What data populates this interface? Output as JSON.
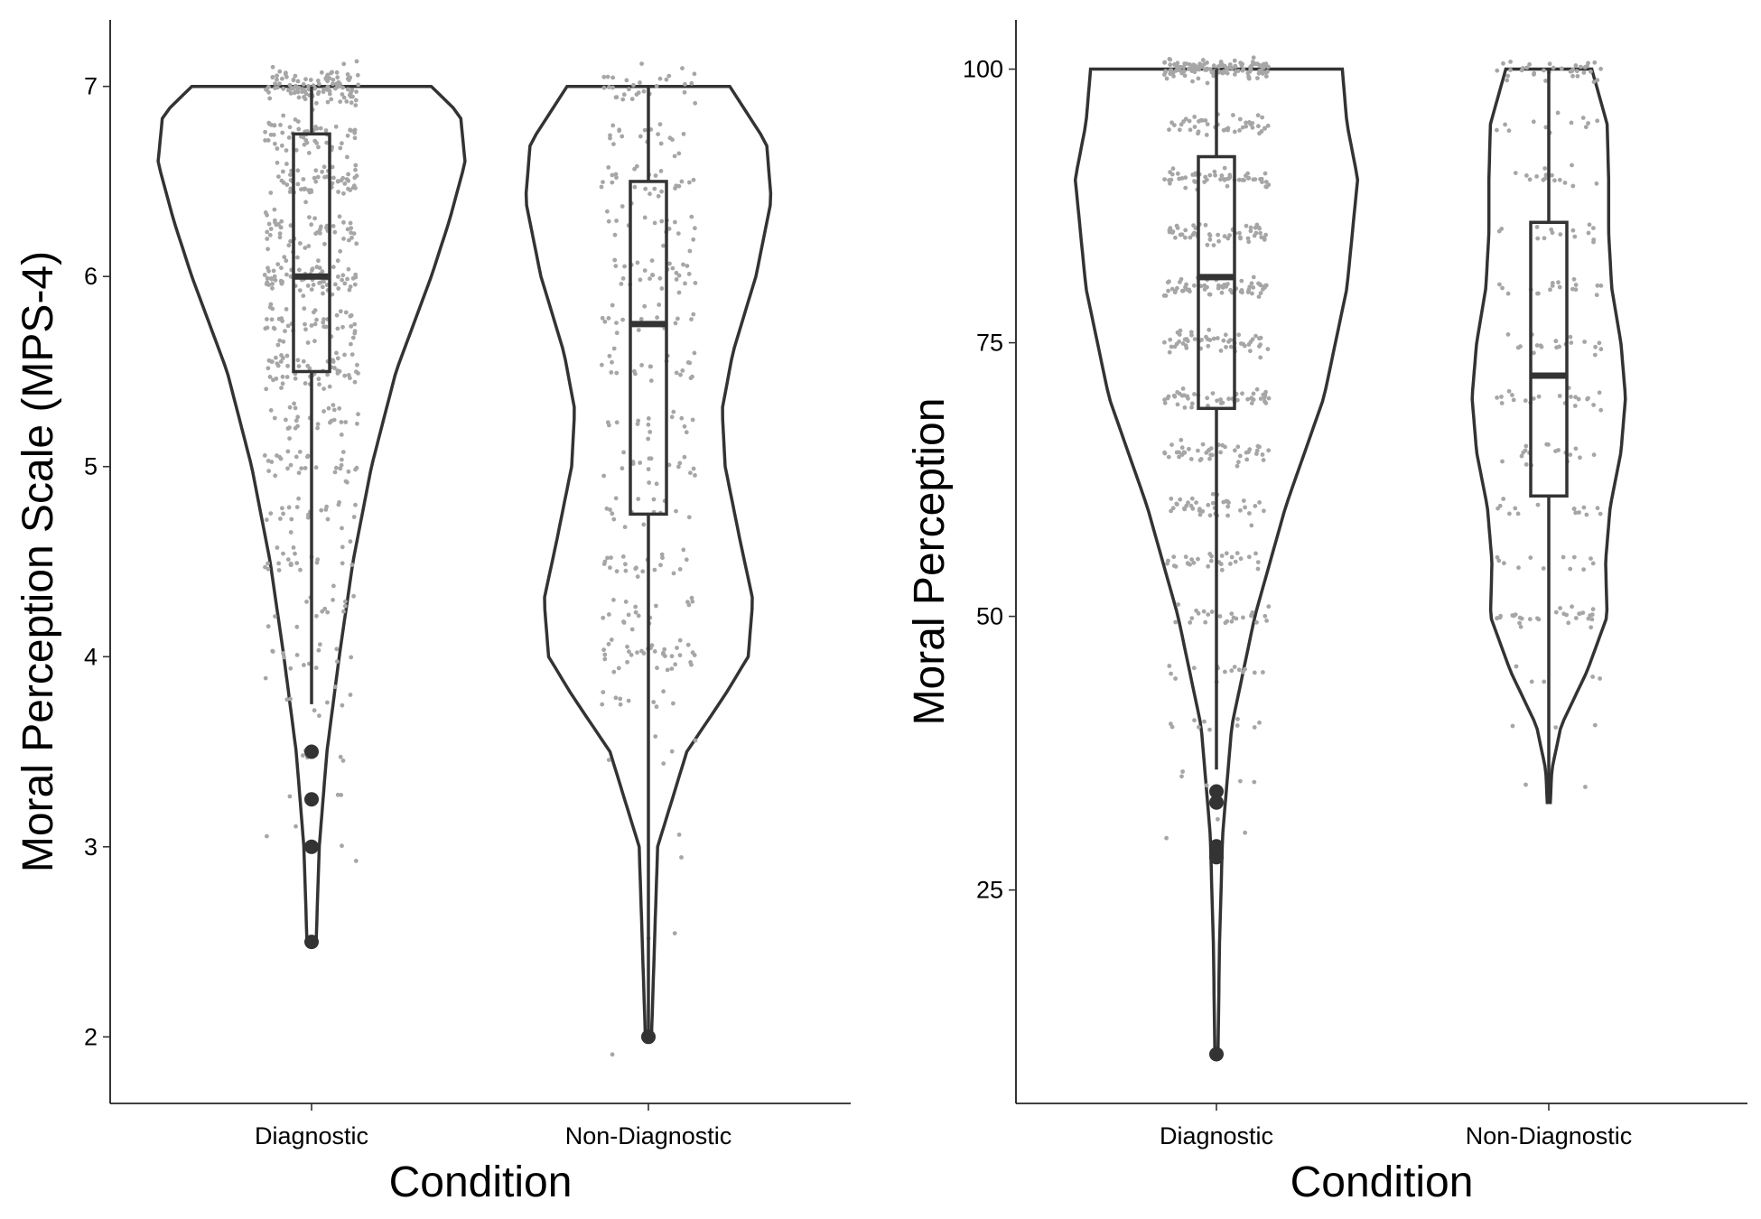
{
  "chart_data": [
    {
      "type": "violin",
      "title": "",
      "xlabel": "Condition",
      "ylabel": "Moral Perception Scale (MPS-4)",
      "ylim": [
        1.65,
        7.35
      ],
      "yticks": [
        2,
        3,
        4,
        5,
        6,
        7
      ],
      "categories": [
        "Diagnostic",
        "Non-Diagnostic"
      ],
      "grid": false,
      "legend": "none",
      "colors": {
        "outline": "#333333",
        "points": "#a6a6a6"
      },
      "series": [
        {
          "category": "Diagnostic",
          "box": {
            "q1": 5.5,
            "median": 6.0,
            "q3": 6.75,
            "whisker_low": 3.75,
            "whisker_high": 7.0
          },
          "outliers": [
            3.5,
            3.25,
            3.0,
            2.5
          ],
          "density": [
            [
              2.5,
              0.03
            ],
            [
              3.0,
              0.05
            ],
            [
              3.5,
              0.1
            ],
            [
              4.0,
              0.18
            ],
            [
              4.5,
              0.27
            ],
            [
              5.0,
              0.39
            ],
            [
              5.5,
              0.55
            ],
            [
              6.0,
              0.78
            ],
            [
              6.3,
              0.9
            ],
            [
              6.6,
              1.0
            ],
            [
              6.85,
              0.97
            ],
            [
              7.0,
              0.78
            ]
          ],
          "jitter_clusters": [
            [
              7.0,
              120
            ],
            [
              6.75,
              55
            ],
            [
              6.5,
              60
            ],
            [
              6.25,
              55
            ],
            [
              6.0,
              75
            ],
            [
              5.75,
              50
            ],
            [
              5.5,
              55
            ],
            [
              5.25,
              30
            ],
            [
              5.0,
              30
            ],
            [
              4.75,
              22
            ],
            [
              4.5,
              22
            ],
            [
              4.25,
              15
            ],
            [
              4.0,
              15
            ],
            [
              3.75,
              8
            ],
            [
              3.5,
              6
            ],
            [
              3.25,
              4
            ],
            [
              3.0,
              3
            ],
            [
              2.5,
              1
            ]
          ]
        },
        {
          "category": "Non-Diagnostic",
          "box": {
            "q1": 4.75,
            "median": 5.75,
            "q3": 6.5,
            "whisker_low": 2.0,
            "whisker_high": 7.0
          },
          "outliers": [
            2.0
          ],
          "density": [
            [
              2.0,
              0.02
            ],
            [
              2.5,
              0.04
            ],
            [
              3.0,
              0.06
            ],
            [
              3.5,
              0.25
            ],
            [
              3.8,
              0.5
            ],
            [
              4.0,
              0.65
            ],
            [
              4.3,
              0.68
            ],
            [
              4.6,
              0.6
            ],
            [
              5.0,
              0.5
            ],
            [
              5.3,
              0.48
            ],
            [
              5.6,
              0.55
            ],
            [
              6.0,
              0.7
            ],
            [
              6.4,
              0.8
            ],
            [
              6.7,
              0.77
            ],
            [
              7.0,
              0.53
            ]
          ],
          "jitter_clusters": [
            [
              7.0,
              30
            ],
            [
              6.75,
              18
            ],
            [
              6.5,
              25
            ],
            [
              6.25,
              20
            ],
            [
              6.0,
              28
            ],
            [
              5.75,
              18
            ],
            [
              5.5,
              22
            ],
            [
              5.25,
              15
            ],
            [
              5.0,
              18
            ],
            [
              4.75,
              15
            ],
            [
              4.5,
              22
            ],
            [
              4.25,
              18
            ],
            [
              4.0,
              35
            ],
            [
              3.75,
              10
            ],
            [
              3.5,
              5
            ],
            [
              3.0,
              2
            ],
            [
              2.5,
              2
            ],
            [
              2.0,
              1
            ]
          ]
        }
      ]
    },
    {
      "type": "violin",
      "title": "",
      "xlabel": "Condition",
      "ylabel": "Moral Perception",
      "ylim": [
        5.5,
        104.5
      ],
      "yticks": [
        25,
        50,
        75,
        100
      ],
      "categories": [
        "Diagnostic",
        "Non-Diagnostic"
      ],
      "grid": false,
      "legend": "none",
      "colors": {
        "outline": "#333333",
        "points": "#a6a6a6"
      },
      "series": [
        {
          "category": "Diagnostic",
          "box": {
            "q1": 69,
            "median": 81,
            "q3": 92,
            "whisker_low": 36,
            "whisker_high": 100
          },
          "outliers": [
            34,
            33,
            29,
            28,
            10
          ],
          "density": [
            [
              10,
              0.01
            ],
            [
              20,
              0.02
            ],
            [
              30,
              0.04
            ],
            [
              40,
              0.1
            ],
            [
              50,
              0.25
            ],
            [
              60,
              0.45
            ],
            [
              70,
              0.7
            ],
            [
              80,
              0.85
            ],
            [
              90,
              0.92
            ],
            [
              95,
              0.85
            ],
            [
              100,
              0.82
            ]
          ],
          "jitter_clusters": [
            [
              100,
              130
            ],
            [
              95,
              45
            ],
            [
              90,
              55
            ],
            [
              85,
              55
            ],
            [
              80,
              60
            ],
            [
              75,
              55
            ],
            [
              70,
              50
            ],
            [
              65,
              45
            ],
            [
              60,
              40
            ],
            [
              55,
              30
            ],
            [
              50,
              25
            ],
            [
              45,
              15
            ],
            [
              40,
              10
            ],
            [
              35,
              5
            ],
            [
              30,
              3
            ]
          ]
        },
        {
          "category": "Non-Diagnostic",
          "box": {
            "q1": 61,
            "median": 72,
            "q3": 86,
            "whisker_low": 33,
            "whisker_high": 100
          },
          "outliers": [],
          "density": [
            [
              33,
              0.01
            ],
            [
              36,
              0.02
            ],
            [
              40,
              0.08
            ],
            [
              45,
              0.25
            ],
            [
              50,
              0.38
            ],
            [
              55,
              0.37
            ],
            [
              60,
              0.4
            ],
            [
              65,
              0.47
            ],
            [
              70,
              0.5
            ],
            [
              75,
              0.47
            ],
            [
              80,
              0.41
            ],
            [
              85,
              0.39
            ],
            [
              90,
              0.39
            ],
            [
              95,
              0.38
            ],
            [
              100,
              0.28
            ]
          ],
          "jitter_clusters": [
            [
              100,
              35
            ],
            [
              95,
              12
            ],
            [
              90,
              15
            ],
            [
              85,
              15
            ],
            [
              80,
              18
            ],
            [
              75,
              20
            ],
            [
              70,
              22
            ],
            [
              65,
              18
            ],
            [
              60,
              15
            ],
            [
              55,
              12
            ],
            [
              50,
              30
            ],
            [
              45,
              5
            ],
            [
              40,
              3
            ],
            [
              35,
              2
            ]
          ]
        }
      ]
    }
  ]
}
